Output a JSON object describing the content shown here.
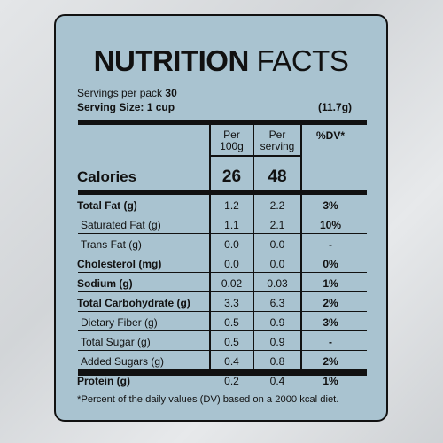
{
  "title": {
    "bold": "NUTRITION",
    "light": "FACTS"
  },
  "servings": {
    "label": "Servings per pack",
    "value": "30"
  },
  "serving_size": {
    "label": "Serving Size: 1 cup",
    "value": "(11.7g)"
  },
  "columns": {
    "per100": "Per 100g",
    "perServing": "Per serving",
    "dv": "%DV*"
  },
  "calories": {
    "label": "Calories",
    "per100": "26",
    "perServing": "48"
  },
  "rows": [
    {
      "label": "Total Fat (g)",
      "per100": "1.2",
      "perServing": "2.2",
      "dv": "3%",
      "bold": true,
      "indent": false
    },
    {
      "label": "Saturated Fat (g)",
      "per100": "1.1",
      "perServing": "2.1",
      "dv": "10%",
      "bold": false,
      "indent": true
    },
    {
      "label": "Trans Fat (g)",
      "per100": "0.0",
      "perServing": "0.0",
      "dv": "-",
      "bold": false,
      "indent": true
    },
    {
      "label": "Cholesterol (mg)",
      "per100": "0.0",
      "perServing": "0.0",
      "dv": "0%",
      "bold": true,
      "indent": false
    },
    {
      "label": "Sodium (g)",
      "per100": "0.02",
      "perServing": "0.03",
      "dv": "1%",
      "bold": true,
      "indent": false
    },
    {
      "label": "Total Carbohydrate (g)",
      "per100": "3.3",
      "perServing": "6.3",
      "dv": "2%",
      "bold": true,
      "indent": false
    },
    {
      "label": "Dietary Fiber (g)",
      "per100": "0.5",
      "perServing": "0.9",
      "dv": "3%",
      "bold": false,
      "indent": true
    },
    {
      "label": "Total Sugar (g)",
      "per100": "0.5",
      "perServing": "0.9",
      "dv": "-",
      "bold": false,
      "indent": true
    },
    {
      "label": "Added Sugars (g)",
      "per100": "0.4",
      "perServing": "0.8",
      "dv": "2%",
      "bold": false,
      "indent": true
    },
    {
      "label": "Protein (g)",
      "per100": "0.2",
      "perServing": "0.4",
      "dv": "1%",
      "bold": true,
      "indent": false
    }
  ],
  "footnote": "*Percent of the daily values (DV) based on a 2000 kcal diet.",
  "colors": {
    "background": "#dcdfe2",
    "label_fill": "#a9c3d0",
    "ink": "#111111"
  }
}
